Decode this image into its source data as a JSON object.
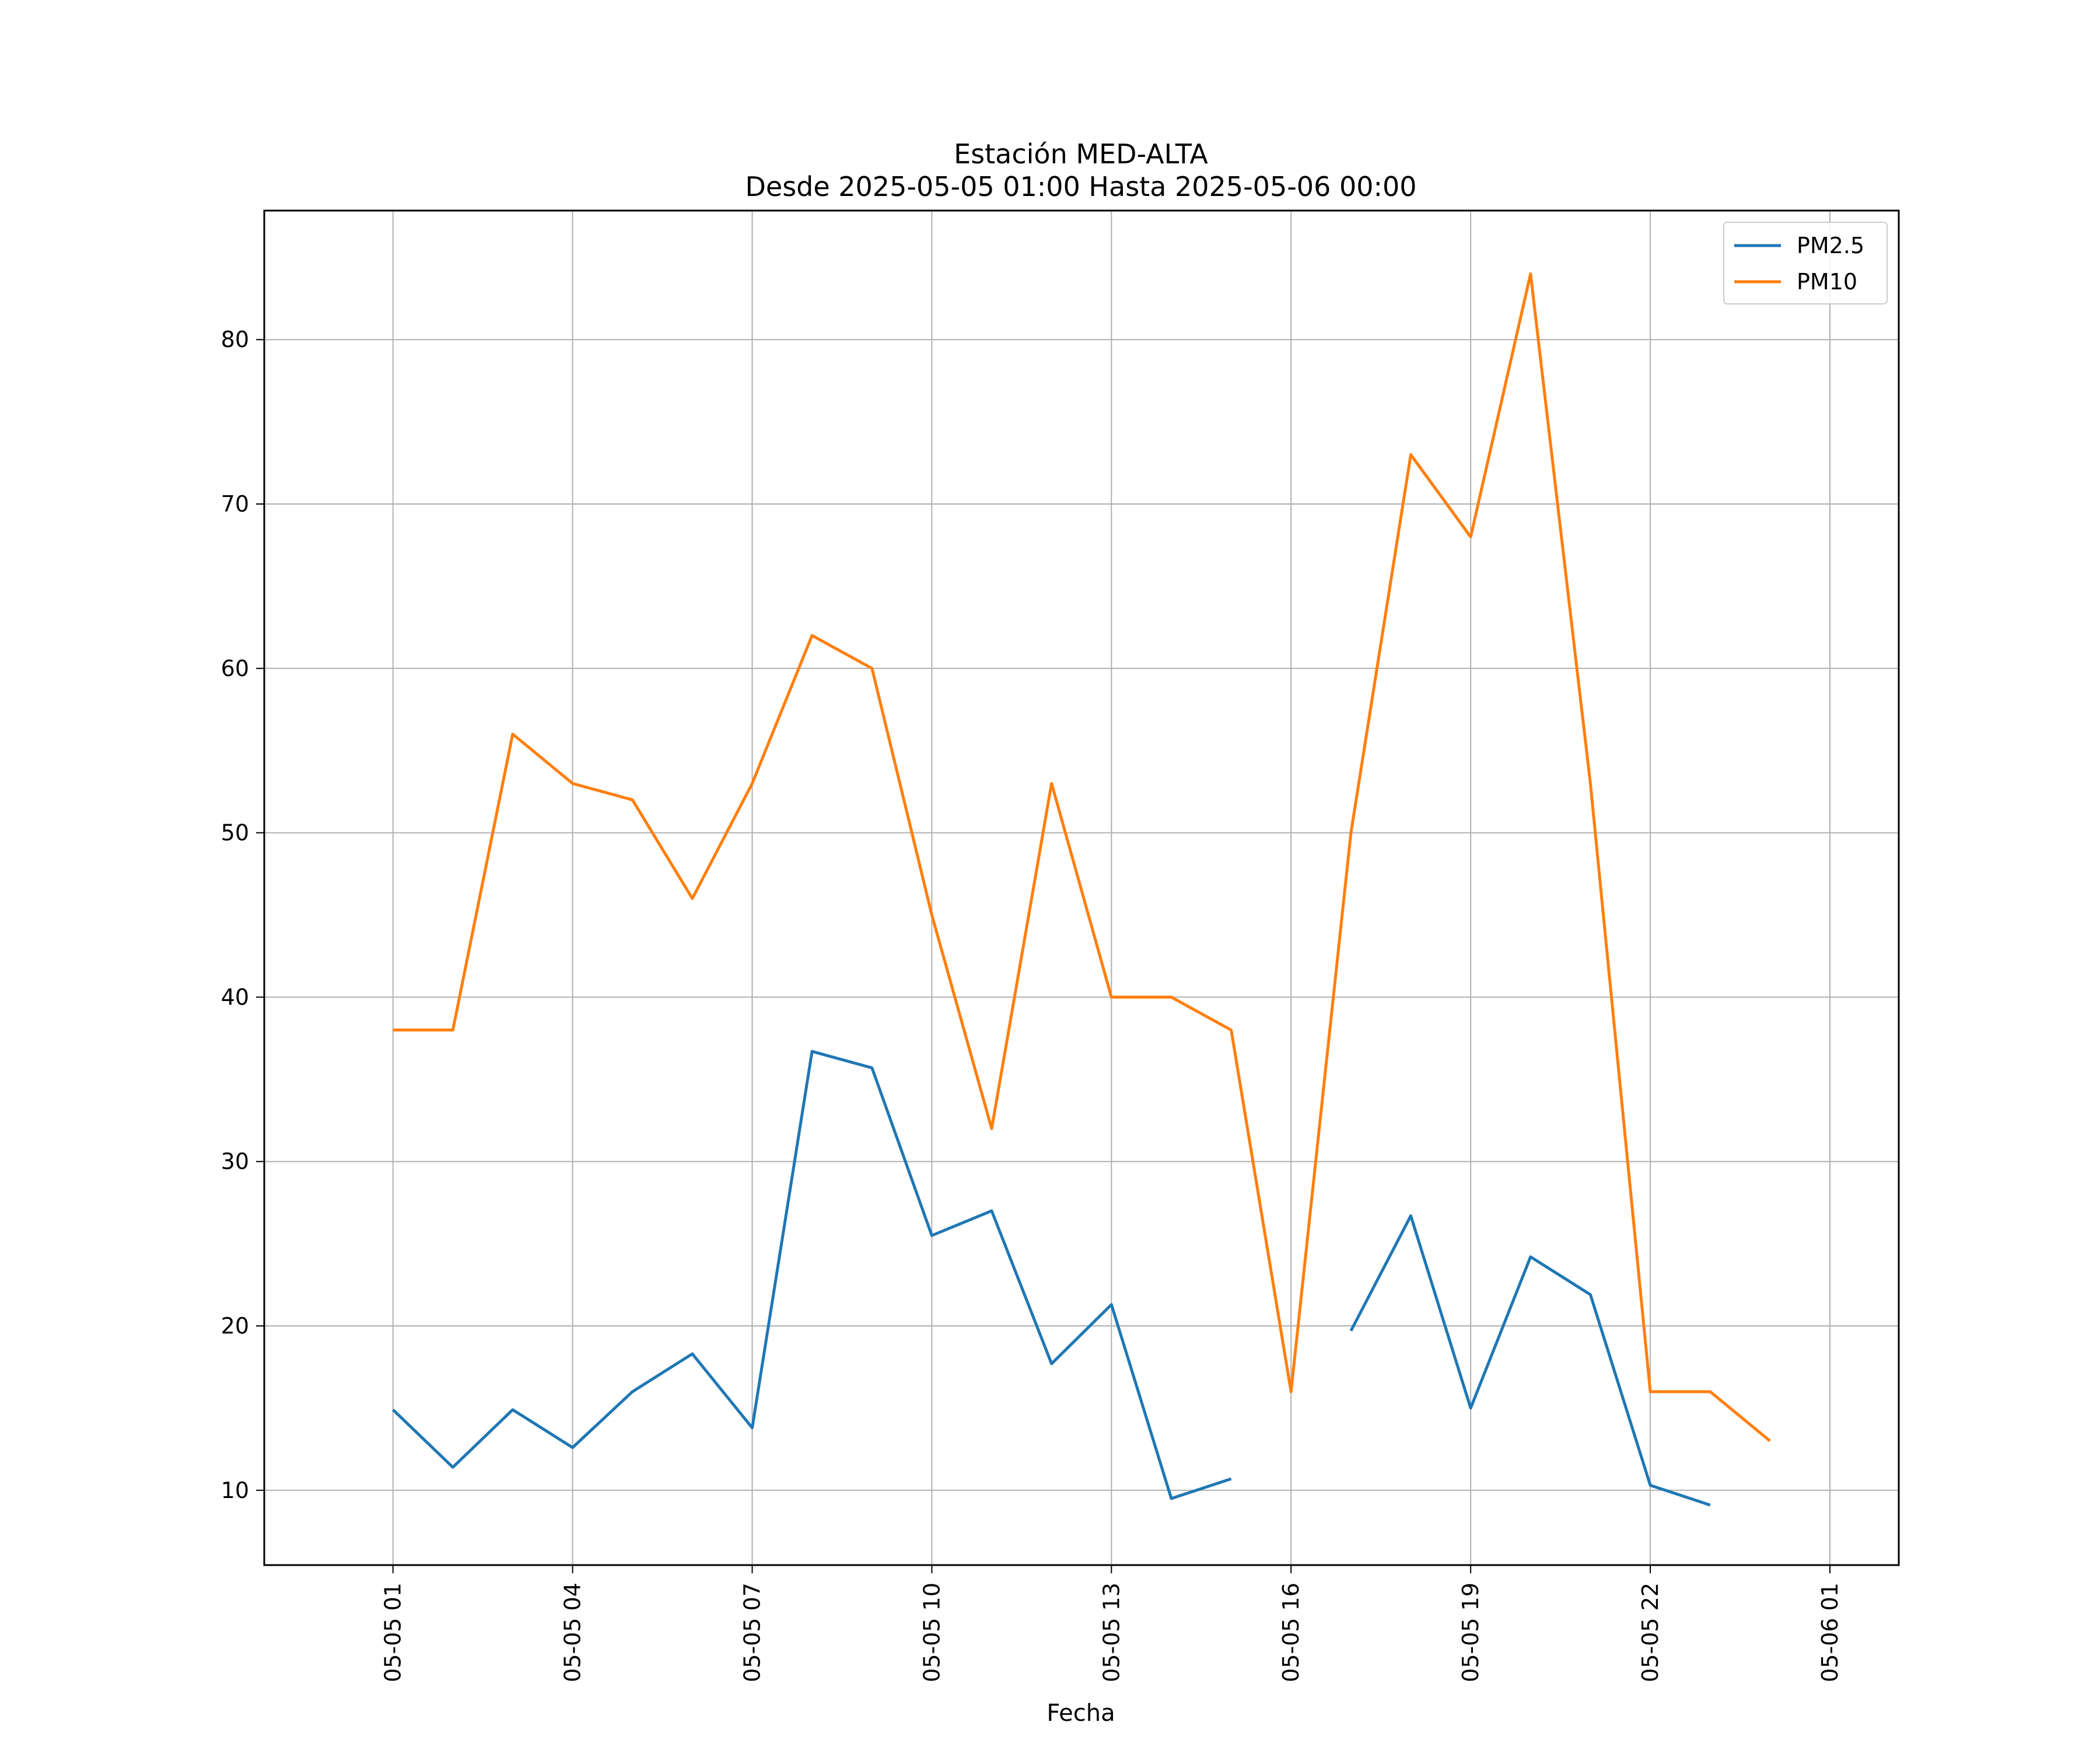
{
  "chart_data": {
    "type": "line",
    "title": "Estación MED-ALTA",
    "subtitle": "Desde 2025-05-05 01:00 Hasta 2025-05-06 00:00",
    "xlabel": "Fecha",
    "ylabel": "",
    "x": [
      "2025-05-05 01:00",
      "2025-05-05 02:00",
      "2025-05-05 03:00",
      "2025-05-05 04:00",
      "2025-05-05 05:00",
      "2025-05-05 06:00",
      "2025-05-05 07:00",
      "2025-05-05 08:00",
      "2025-05-05 09:00",
      "2025-05-05 10:00",
      "2025-05-05 11:00",
      "2025-05-05 12:00",
      "2025-05-05 13:00",
      "2025-05-05 14:00",
      "2025-05-05 15:00",
      "2025-05-05 16:00",
      "2025-05-05 17:00",
      "2025-05-05 18:00",
      "2025-05-05 19:00",
      "2025-05-05 20:00",
      "2025-05-05 21:00",
      "2025-05-05 22:00",
      "2025-05-05 23:00",
      "2025-05-06 00:00"
    ],
    "series": [
      {
        "name": "PM2.5",
        "color": "#1f77b4",
        "values": [
          14.9,
          11.4,
          14.9,
          12.6,
          16.0,
          18.3,
          13.8,
          36.7,
          35.7,
          25.5,
          27.0,
          17.7,
          21.3,
          9.5,
          10.7,
          null,
          19.7,
          26.7,
          15.0,
          24.2,
          21.9,
          10.3,
          9.1,
          null
        ]
      },
      {
        "name": "PM10",
        "color": "#ff7f0e",
        "values": [
          38,
          38,
          56,
          53,
          52,
          46,
          53,
          62,
          60,
          45,
          32,
          53,
          40,
          40,
          38,
          16,
          50,
          73,
          68,
          84,
          53,
          16,
          16,
          13
        ]
      }
    ],
    "xticks": [
      "05-05 01",
      "05-05 04",
      "05-05 07",
      "05-05 10",
      "05-05 13",
      "05-05 16",
      "05-05 19",
      "05-05 22",
      "05-06 01"
    ],
    "yticks": [
      10,
      20,
      30,
      40,
      50,
      60,
      70,
      80
    ],
    "xlim": [
      "2025-05-04 22:51",
      "2025-05-06 02:09"
    ],
    "ylim": [
      5.45,
      87.85
    ],
    "grid": true,
    "legend_position": "top-right"
  }
}
